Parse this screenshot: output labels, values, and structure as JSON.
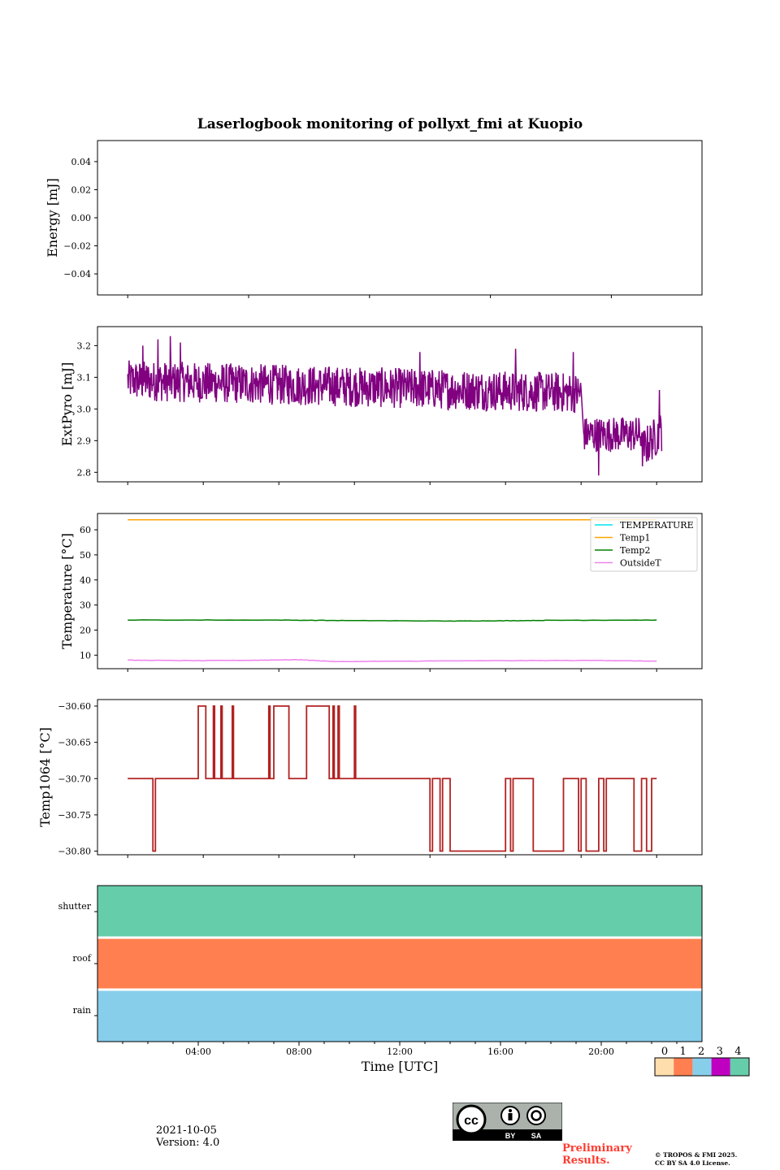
{
  "chart_data": [
    {
      "type": "line",
      "id": "energy",
      "title": "Laserlogbook monitoring of pollyxt_fmi at Kuopio",
      "xlabel": "",
      "ylabel": "Energy [mJ]",
      "xlim": [
        0,
        24
      ],
      "ylim": [
        -0.055,
        0.055
      ],
      "yticks": [
        0.04,
        0.02,
        0.0,
        -0.02,
        -0.04
      ],
      "ytick_labels": [
        "0.04",
        "0.02",
        "0.00",
        "−0.02",
        "−0.04"
      ],
      "xticks": [
        1.2,
        6,
        10.8,
        15.6,
        20.4,
        25.2
      ],
      "series": []
    },
    {
      "type": "line",
      "id": "extpyro",
      "xlabel": "",
      "ylabel": "ExtPyro [mJ]",
      "xlim": [
        0,
        24
      ],
      "ylim": [
        2.77,
        3.26
      ],
      "yticks": [
        3.2,
        3.1,
        3.0,
        2.9,
        2.8
      ],
      "ytick_labels": [
        "3.2",
        "3.1",
        "3.0",
        "2.9",
        "2.8"
      ],
      "xticks": [
        1.2,
        4.2,
        7.2,
        10.2,
        13.2,
        16.2,
        19.2,
        22.2
      ],
      "series": [
        {
          "name": "ExtPyro",
          "color": "#800080",
          "segments": [
            {
              "x": [
                1.2,
                19.2
              ],
              "mean": 3.07,
              "noise": 0.08,
              "trend": -0.04
            },
            {
              "x": [
                19.3,
                21.6
              ],
              "mean": 2.92,
              "noise": 0.07,
              "trend": 0.0
            },
            {
              "x": [
                21.6,
                22.4
              ],
              "mean": 2.9,
              "noise": 0.08,
              "trend": 0.06
            }
          ],
          "spikes": [
            {
              "x": 1.8,
              "y": 3.2
            },
            {
              "x": 2.4,
              "y": 3.22
            },
            {
              "x": 2.9,
              "y": 3.23
            },
            {
              "x": 3.3,
              "y": 3.21
            },
            {
              "x": 12.8,
              "y": 3.18
            },
            {
              "x": 16.6,
              "y": 3.19
            },
            {
              "x": 18.9,
              "y": 3.18
            },
            {
              "x": 19.9,
              "y": 2.79
            },
            {
              "x": 22.3,
              "y": 3.06
            }
          ]
        }
      ]
    },
    {
      "type": "line",
      "id": "temperature",
      "xlabel": "",
      "ylabel": "Temperature [°C]",
      "xlim": [
        0,
        24
      ],
      "ylim": [
        4.6,
        66.5
      ],
      "yticks": [
        60,
        50,
        40,
        30,
        20,
        10
      ],
      "ytick_labels": [
        "60",
        "50",
        "40",
        "30",
        "20",
        "10"
      ],
      "xticks": [
        1.2,
        4.2,
        7.2,
        10.2,
        13.2,
        16.2,
        19.2,
        22.2
      ],
      "legend_position": "top-right",
      "series": [
        {
          "name": "TEMPERATURE",
          "color": "#00e5ee",
          "x": [],
          "y": []
        },
        {
          "name": "Temp1",
          "color": "#ffa500",
          "x": [
            1.2,
            22.2
          ],
          "y": [
            64,
            64
          ]
        },
        {
          "name": "Temp2",
          "color": "#008000",
          "x": [
            1.2,
            7,
            10,
            14,
            16,
            18,
            22.2
          ],
          "y": [
            24,
            24,
            23.8,
            23.6,
            23.7,
            23.9,
            24
          ]
        },
        {
          "name": "OutsideT",
          "color": "#ee82ee",
          "x": [
            1.2,
            4,
            6.5,
            8,
            9.5,
            12,
            16,
            20,
            22.2
          ],
          "y": [
            8,
            7.8,
            8,
            8.2,
            7.4,
            7.6,
            7.8,
            7.9,
            7.6
          ]
        }
      ]
    },
    {
      "type": "line",
      "id": "temp1064",
      "xlabel": "",
      "ylabel": "Temp1064 [°C]",
      "xlim": [
        0,
        24
      ],
      "ylim": [
        -30.805,
        -30.591
      ],
      "yticks": [
        -30.6,
        -30.65,
        -30.7,
        -30.75,
        -30.8
      ],
      "ytick_labels": [
        "−30.60",
        "−30.65",
        "−30.70",
        "−30.75",
        "−30.80"
      ],
      "xticks": [
        1.2,
        4.2,
        7.2,
        10.2,
        13.2,
        16.2,
        19.2,
        22.2
      ],
      "series": [
        {
          "name": "Temp1064",
          "color": "#b22222",
          "baseline": -30.7,
          "high_level": -30.6,
          "low_level": -30.8,
          "high_blocks": [
            [
              4.0,
              4.3
            ],
            [
              4.6,
              4.65
            ],
            [
              4.9,
              4.95
            ],
            [
              5.35,
              5.4
            ],
            [
              6.8,
              6.85
            ],
            [
              7.0,
              7.6
            ],
            [
              8.3,
              9.2
            ],
            [
              9.35,
              9.4
            ],
            [
              9.55,
              9.6
            ],
            [
              10.2,
              10.25
            ]
          ],
          "low_blocks": [
            [
              2.2,
              2.3
            ],
            [
              13.2,
              13.3
            ],
            [
              13.6,
              13.7
            ],
            [
              14.0,
              16.2
            ],
            [
              16.4,
              16.5
            ],
            [
              17.3,
              18.5
            ],
            [
              19.1,
              19.2
            ],
            [
              19.4,
              19.9
            ],
            [
              20.1,
              20.2
            ],
            [
              21.3,
              21.6
            ],
            [
              21.8,
              22.0
            ]
          ]
        }
      ]
    },
    {
      "type": "heatmap",
      "id": "status",
      "xlabel": "Time [UTC]",
      "ylabel": "",
      "xlim": [
        0,
        24
      ],
      "rows": [
        "shutter",
        "roof",
        "rain"
      ],
      "row_values": [
        4,
        1,
        2
      ],
      "xticks": [
        4,
        8,
        12,
        16,
        20
      ],
      "xtick_labels": [
        "04:00",
        "08:00",
        "12:00",
        "16:00",
        "20:00"
      ],
      "minor_xticks": [
        1,
        2,
        3,
        5,
        6,
        7,
        9,
        10,
        11,
        13,
        14,
        15,
        17,
        18,
        19,
        21,
        22,
        23
      ],
      "colorbar": {
        "labels": [
          "0",
          "1",
          "2",
          "3",
          "4"
        ],
        "colors": [
          "#ffdead",
          "#ff7f50",
          "#87ceeb",
          "#c000c0",
          "#66cdaa"
        ]
      }
    }
  ],
  "footer": {
    "date": "2021-10-05",
    "version": "Version: 4.0",
    "preliminary_line1": "Preliminary",
    "preliminary_line2": "Results.",
    "copyright_line1": "© TROPOS & FMI 2025.",
    "copyright_line2": "CC BY SA 4.0 License.",
    "cc_badge": {
      "by": "BY",
      "sa": "SA",
      "cc": "cc"
    }
  }
}
